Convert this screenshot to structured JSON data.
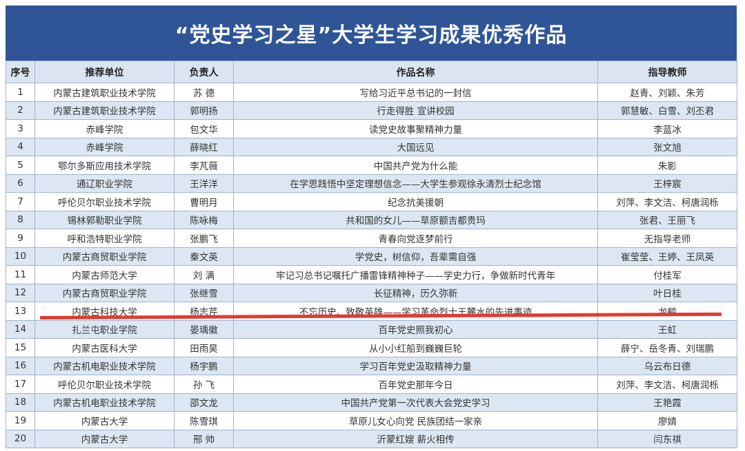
{
  "title": "“党史学习之星”大学生学习成果优秀作品",
  "headers": {
    "no": "序号",
    "unit": "推荐单位",
    "lead": "负责人",
    "work": "作品名称",
    "teacher": "指导教师"
  },
  "annotation_color": "#e23b2f",
  "rows": [
    {
      "no": "1",
      "unit": "内蒙古建筑职业技术学院",
      "lead": "苏  德",
      "work": "写给习近平总书记的一封信",
      "teacher": "赵青、刘颖、朱芳"
    },
    {
      "no": "2",
      "unit": "内蒙古建筑职业技术学院",
      "lead": "郭明扬",
      "work": "行走得胜 宣讲校园",
      "teacher": "郭慧敏、白雪、刘丕君"
    },
    {
      "no": "3",
      "unit": "赤峰学院",
      "lead": "包文华",
      "work": "读党史故事聚精神力量",
      "teacher": "李蓝冰"
    },
    {
      "no": "4",
      "unit": "赤峰学院",
      "lead": "薛晓红",
      "work": "大国远见",
      "teacher": "张文旭"
    },
    {
      "no": "5",
      "unit": "鄂尔多斯应用技术学院",
      "lead": "李芃薇",
      "work": "中国共产党为什么能",
      "teacher": "朱影"
    },
    {
      "no": "6",
      "unit": "通辽职业学院",
      "lead": "王洋洋",
      "work": "在学思践悟中坚定理想信念——大学生参观徐永清烈士纪念馆",
      "teacher": "王梓宸"
    },
    {
      "no": "7",
      "unit": "呼伦贝尔职业技术学院",
      "lead": "曹明月",
      "work": "纪念抗美援朝",
      "teacher": "刘萍、李文洁、柯唐润栎"
    },
    {
      "no": "8",
      "unit": "锡林郭勒职业学院",
      "lead": "陈咏梅",
      "work": "共和国的女儿——草原额吉都贵玛",
      "teacher": "张君、王丽飞"
    },
    {
      "no": "9",
      "unit": "呼和浩特职业学院",
      "lead": "张鹏飞",
      "work": "青春向党逐梦前行",
      "teacher": "无指导老师"
    },
    {
      "no": "10",
      "unit": "内蒙古商贸职业学院",
      "lead": "秦文英",
      "work": "学党史，树信仰，吾辈需自强",
      "teacher": "崔莹莹、王婷、王凤英"
    },
    {
      "no": "11",
      "unit": "内蒙古师范大学",
      "lead": "刘  满",
      "work": "牢记习总书记嘱托广播雷锋精神种子——学史力行，争做新时代青年",
      "teacher": "付桂军"
    },
    {
      "no": "12",
      "unit": "内蒙古商贸职业学院",
      "lead": "张继雪",
      "work": "长征精神，历久弥新",
      "teacher": "叶日桂"
    },
    {
      "no": "13",
      "unit": "内蒙古科技大学",
      "lead": "杨志芹",
      "work": "不忘历史、致敬英雄——学习革命烈士王麓水的先进事迹",
      "teacher": "龙鹤"
    },
    {
      "no": "14",
      "unit": "扎兰屯职业学院",
      "lead": "晏瑀徽",
      "work": "百年党史照我初心",
      "teacher": "王虹"
    },
    {
      "no": "15",
      "unit": "内蒙古医科大学",
      "lead": "田雨昊",
      "work": "从小小红船到巍巍巨轮",
      "teacher": "薛宁、岳冬青、刘瑞鹏"
    },
    {
      "no": "16",
      "unit": "内蒙古机电职业技术学院",
      "lead": "杨宇鹏",
      "work": "学习百年党史汲取精神力量",
      "teacher": "乌云布日德"
    },
    {
      "no": "17",
      "unit": "呼伦贝尔职业技术学院",
      "lead": "孙  飞",
      "work": "百年党史那年今日",
      "teacher": "刘萍、李文洁、柯唐润栎"
    },
    {
      "no": "18",
      "unit": "内蒙古机电职业技术学院",
      "lead": "邵文龙",
      "work": "中国共产党第一次代表大会党史学习",
      "teacher": "王艳霞"
    },
    {
      "no": "19",
      "unit": "内蒙古大学",
      "lead": "陈雪琪",
      "work": "草原儿女心向党 民族团结一家亲",
      "teacher": "廖婧"
    },
    {
      "no": "20",
      "unit": "内蒙古大学",
      "lead": "邢  帅",
      "work": "沂蒙红嫂 薪火相传",
      "teacher": "闫东祺"
    }
  ]
}
